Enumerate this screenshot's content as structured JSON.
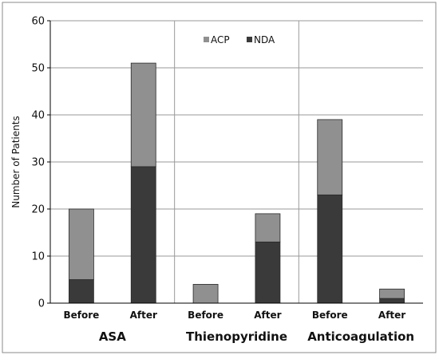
{
  "chart_data": {
    "type": "bar",
    "stacked": true,
    "title": "",
    "xlabel": "",
    "ylabel": "Number of Patients",
    "ylim": [
      0,
      60
    ],
    "yticks": [
      0,
      10,
      20,
      30,
      40,
      50,
      60
    ],
    "grid": true,
    "legend_position": "top-center",
    "categories": [
      "Before",
      "After",
      "Before",
      "After",
      "Before",
      "After"
    ],
    "groups": [
      {
        "label": "ASA",
        "categories": [
          0,
          1
        ]
      },
      {
        "label": "Thienopyridine",
        "categories": [
          2,
          3
        ]
      },
      {
        "label": "Anticoagulation",
        "categories": [
          4,
          5
        ]
      }
    ],
    "series": [
      {
        "name": "NDA",
        "color": "#3a3a3a",
        "values": [
          5,
          29,
          0,
          13,
          23,
          1
        ]
      },
      {
        "name": "ACP",
        "color": "#909090",
        "values": [
          15,
          22,
          4,
          6,
          16,
          2
        ]
      }
    ],
    "legend_order": [
      "ACP",
      "NDA"
    ]
  }
}
